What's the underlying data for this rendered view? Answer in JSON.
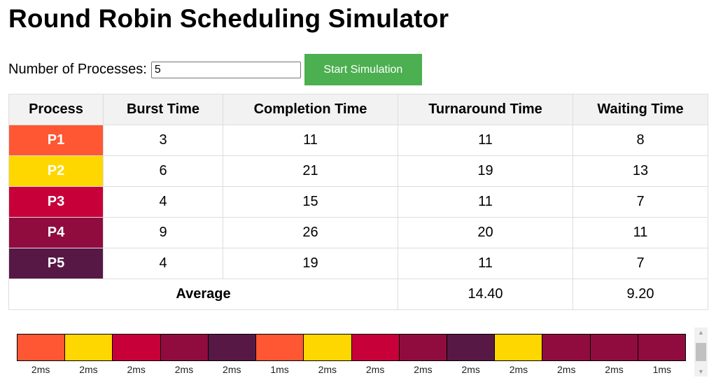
{
  "title": "Round Robin Scheduling Simulator",
  "controls": {
    "label": "Number of Processes:",
    "value": "5",
    "start_label": "Start Simulation",
    "start_color": "#4caf50"
  },
  "table": {
    "headers": [
      "Process",
      "Burst Time",
      "Completion Time",
      "Turnaround Time",
      "Waiting Time"
    ],
    "rows": [
      {
        "name": "P1",
        "color": "#ff5733",
        "burst": "3",
        "completion": "11",
        "turnaround": "11",
        "waiting": "8"
      },
      {
        "name": "P2",
        "color": "#ffd700",
        "burst": "6",
        "completion": "21",
        "turnaround": "19",
        "waiting": "13"
      },
      {
        "name": "P3",
        "color": "#c70039",
        "burst": "4",
        "completion": "15",
        "turnaround": "11",
        "waiting": "7"
      },
      {
        "name": "P4",
        "color": "#900c3f",
        "burst": "9",
        "completion": "26",
        "turnaround": "20",
        "waiting": "11"
      },
      {
        "name": "P5",
        "color": "#581845",
        "burst": "4",
        "completion": "19",
        "turnaround": "11",
        "waiting": "7"
      }
    ],
    "average": {
      "label": "Average",
      "turnaround": "14.40",
      "waiting": "9.20"
    }
  },
  "gantt": [
    {
      "process": "P1",
      "color": "#ff5733",
      "label": "2ms"
    },
    {
      "process": "P2",
      "color": "#ffd700",
      "label": "2ms"
    },
    {
      "process": "P3",
      "color": "#c70039",
      "label": "2ms"
    },
    {
      "process": "P4",
      "color": "#900c3f",
      "label": "2ms"
    },
    {
      "process": "P5",
      "color": "#581845",
      "label": "2ms"
    },
    {
      "process": "P1",
      "color": "#ff5733",
      "label": "1ms"
    },
    {
      "process": "P2",
      "color": "#ffd700",
      "label": "2ms"
    },
    {
      "process": "P3",
      "color": "#c70039",
      "label": "2ms"
    },
    {
      "process": "P4",
      "color": "#900c3f",
      "label": "2ms"
    },
    {
      "process": "P5",
      "color": "#581845",
      "label": "2ms"
    },
    {
      "process": "P2",
      "color": "#ffd700",
      "label": "2ms"
    },
    {
      "process": "P4",
      "color": "#900c3f",
      "label": "2ms"
    },
    {
      "process": "P4",
      "color": "#900c3f",
      "label": "2ms"
    },
    {
      "process": "P4",
      "color": "#900c3f",
      "label": "1ms"
    }
  ],
  "scrollbar": {
    "up_icon": "triangle-up-icon",
    "down_icon": "triangle-down-icon"
  }
}
